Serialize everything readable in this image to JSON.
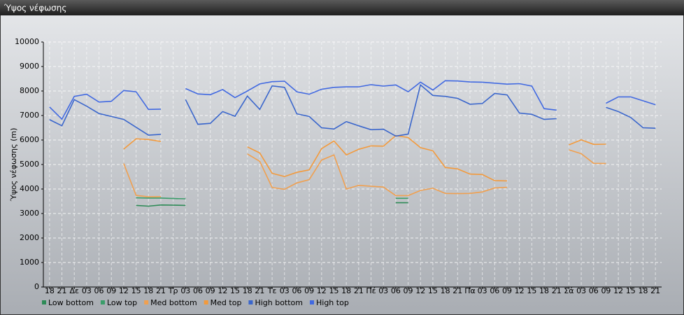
{
  "chart_data": {
    "type": "line",
    "title": "Ύψος νέφωσης",
    "y_label": "Ύψος νέφωσης (m)",
    "categories": [
      "18",
      "21",
      "Δε",
      "03",
      "06",
      "09",
      "12",
      "15",
      "18",
      "21",
      "Τρ",
      "03",
      "06",
      "09",
      "12",
      "15",
      "18",
      "21",
      "Τε",
      "03",
      "06",
      "09",
      "12",
      "15",
      "18",
      "21",
      "Πέ",
      "03",
      "06",
      "09",
      "12",
      "15",
      "18",
      "21",
      "Πα",
      "03",
      "06",
      "09",
      "12",
      "15",
      "18",
      "21",
      "Σά",
      "03",
      "06",
      "09",
      "12",
      "15",
      "18",
      "21"
    ],
    "ylim": [
      0,
      10000
    ],
    "yticks": [
      0,
      1000,
      2000,
      3000,
      4000,
      5000,
      6000,
      7000,
      8000,
      9000,
      10000
    ],
    "grid": true,
    "legend": "bottom",
    "series": [
      {
        "name": "Low bottom",
        "color": "#2e8b57",
        "values": [
          null,
          null,
          null,
          null,
          null,
          null,
          null,
          3330,
          3300,
          3350,
          3340,
          3330,
          null,
          null,
          null,
          null,
          null,
          null,
          null,
          null,
          null,
          null,
          null,
          null,
          null,
          null,
          null,
          null,
          3440,
          3440,
          null,
          null,
          null,
          null,
          null,
          null,
          null,
          null,
          null,
          null,
          null,
          null,
          null,
          null,
          null,
          null,
          null,
          null,
          null,
          null
        ]
      },
      {
        "name": "Low top",
        "color": "#3a9d6a",
        "values": [
          null,
          null,
          null,
          null,
          null,
          null,
          null,
          3640,
          3630,
          3630,
          3610,
          3600,
          null,
          null,
          null,
          null,
          null,
          null,
          null,
          null,
          null,
          null,
          null,
          null,
          null,
          null,
          null,
          null,
          3620,
          3620,
          null,
          null,
          null,
          null,
          null,
          null,
          null,
          null,
          null,
          null,
          null,
          null,
          null,
          null,
          null,
          null,
          null,
          null,
          null,
          null
        ]
      },
      {
        "name": "Med bottom",
        "color": "#f0a050",
        "values": [
          null,
          null,
          null,
          null,
          null,
          null,
          5040,
          3740,
          3680,
          3690,
          null,
          null,
          null,
          null,
          null,
          null,
          5430,
          5130,
          4060,
          3990,
          4250,
          4380,
          5180,
          5390,
          4000,
          4150,
          4110,
          4080,
          3730,
          3730,
          3940,
          4030,
          3820,
          3810,
          3820,
          3880,
          4040,
          4070,
          null,
          null,
          null,
          null,
          5600,
          5440,
          5050,
          5040,
          null,
          null,
          null,
          null
        ]
      },
      {
        "name": "Med top",
        "color": "#f39a3c",
        "values": [
          null,
          null,
          null,
          null,
          null,
          null,
          5630,
          6050,
          6020,
          5940,
          null,
          null,
          null,
          null,
          null,
          null,
          5720,
          5470,
          4640,
          4510,
          4680,
          4780,
          5650,
          5960,
          5390,
          5620,
          5760,
          5750,
          6180,
          6100,
          5690,
          5560,
          4880,
          4820,
          4610,
          4590,
          4340,
          4330,
          null,
          null,
          null,
          null,
          5800,
          6010,
          5820,
          5830,
          null,
          null,
          null,
          null
        ]
      },
      {
        "name": "High bottom",
        "color": "#3a66cc",
        "values": [
          6830,
          6580,
          7650,
          7380,
          7080,
          6960,
          6840,
          6520,
          6200,
          6230,
          null,
          7650,
          6640,
          6680,
          7160,
          6970,
          7790,
          7250,
          8210,
          8150,
          7070,
          6960,
          6500,
          6450,
          6750,
          6580,
          6420,
          6440,
          6160,
          6240,
          8250,
          7820,
          7780,
          7700,
          7460,
          7490,
          7900,
          7840,
          7100,
          7050,
          6840,
          6870,
          null,
          null,
          null,
          7330,
          7160,
          6920,
          6500,
          6480
        ]
      },
      {
        "name": "High top",
        "color": "#4169e1",
        "values": [
          7350,
          6850,
          7780,
          7870,
          7550,
          7580,
          8020,
          7970,
          7250,
          7260,
          null,
          8100,
          7880,
          7850,
          8060,
          7730,
          8000,
          8290,
          8380,
          8400,
          7970,
          7870,
          8070,
          8150,
          8170,
          8170,
          8260,
          8200,
          8250,
          7970,
          8360,
          8040,
          8420,
          8410,
          8370,
          8360,
          8320,
          8280,
          8300,
          8200,
          7280,
          7220,
          null,
          null,
          null,
          7500,
          7760,
          7760,
          7600,
          7440
        ]
      }
    ]
  }
}
